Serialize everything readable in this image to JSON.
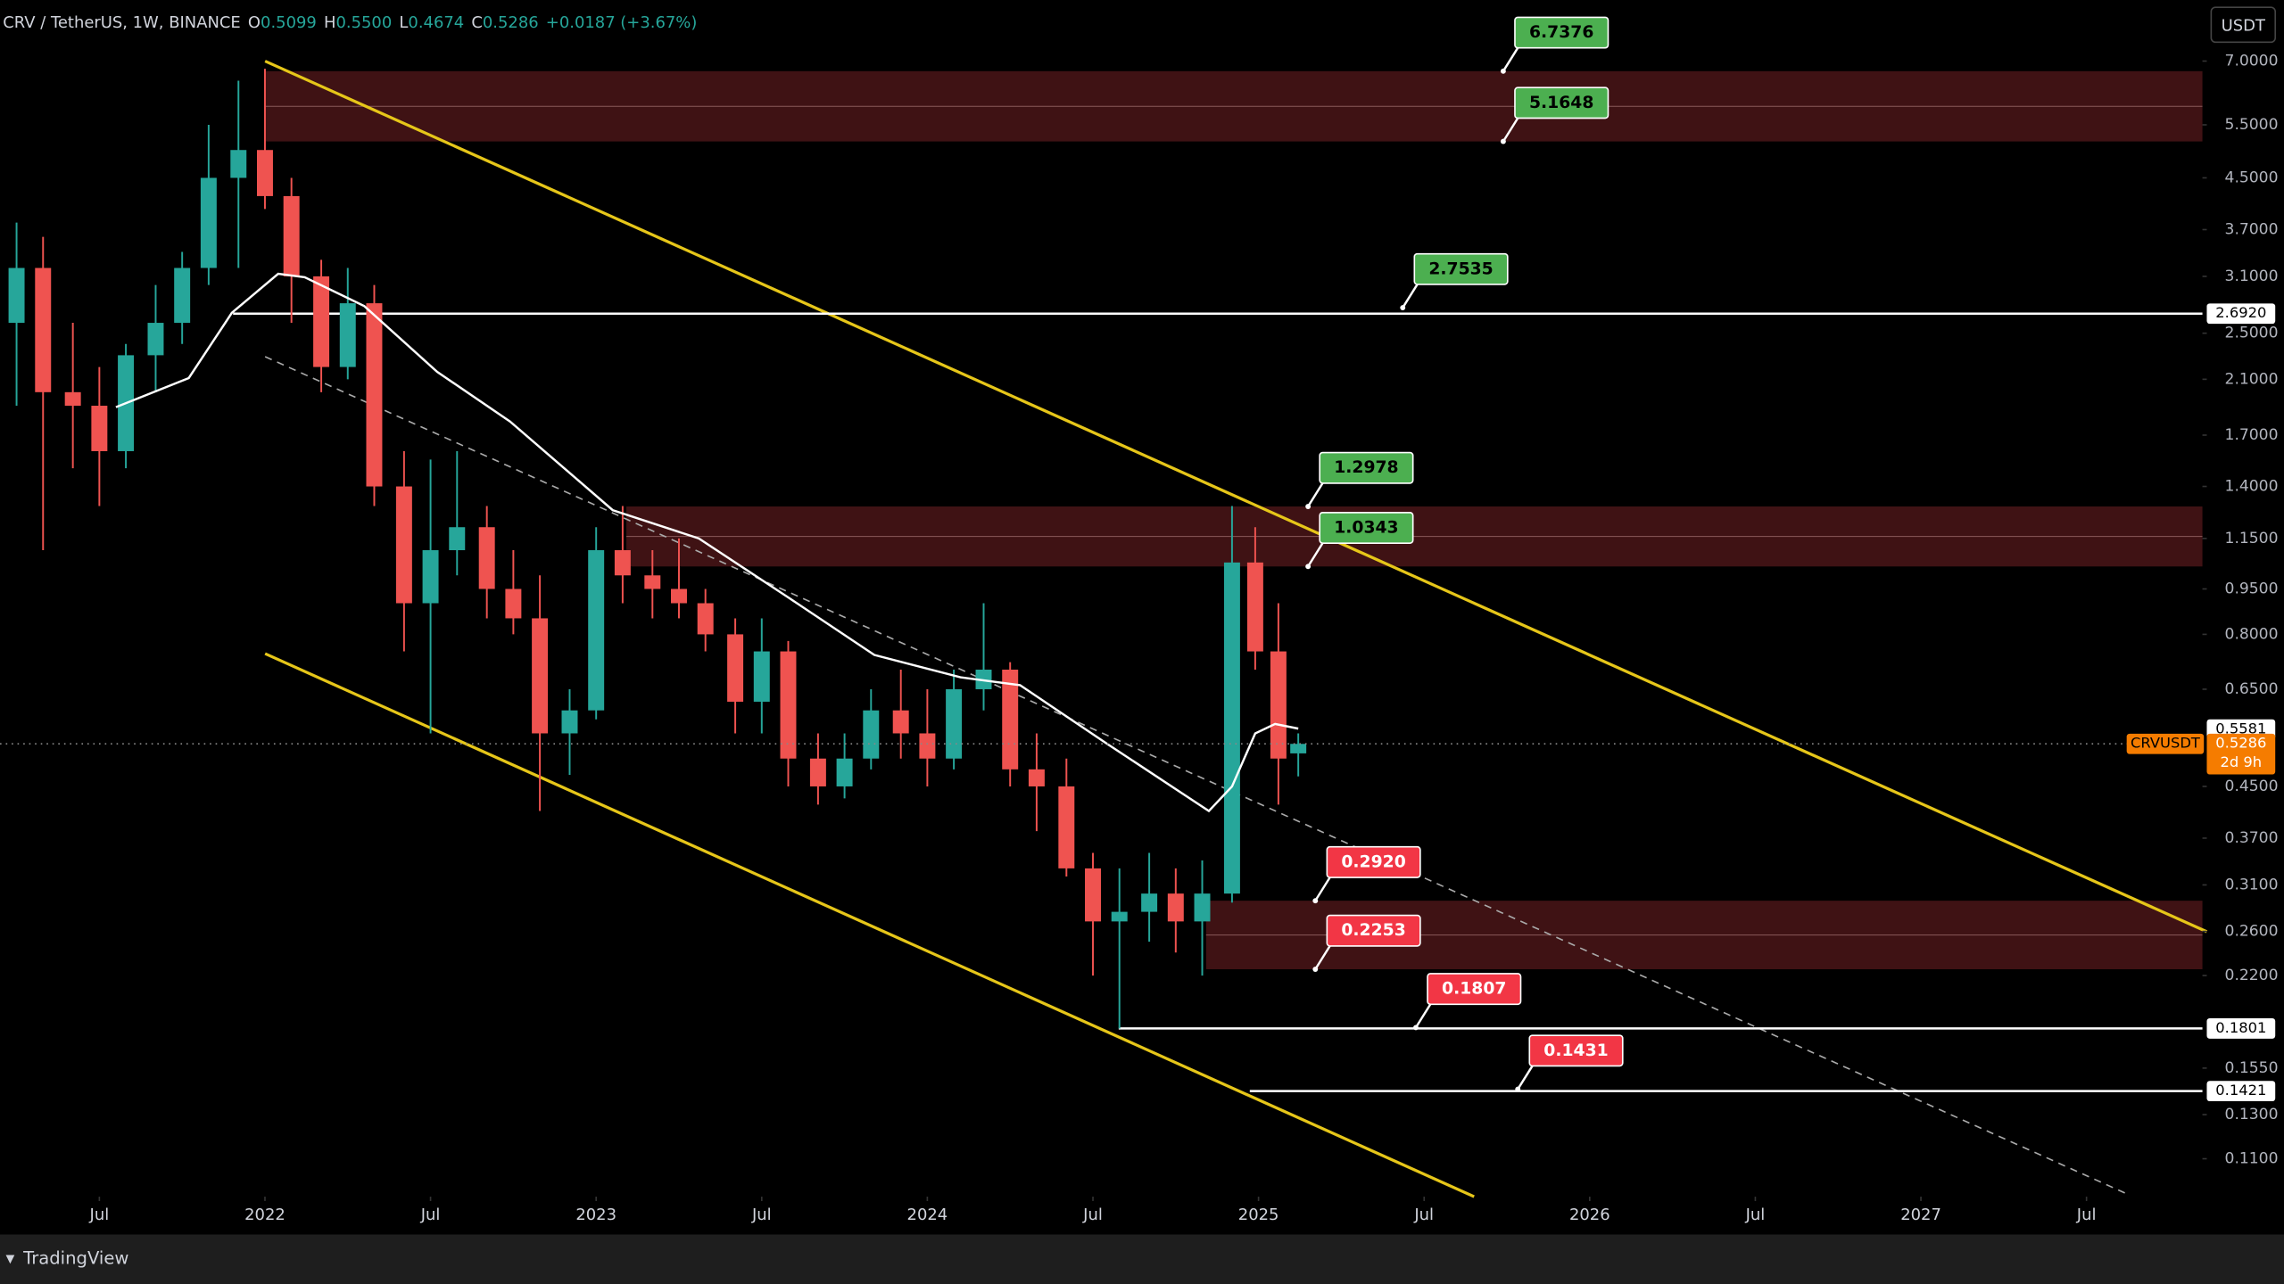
{
  "header": {
    "title": "CRV / TetherUS, 1W, BINANCE",
    "o": {
      "letter": "O",
      "value": "0.5099"
    },
    "h": {
      "letter": "H",
      "value": "0.5500"
    },
    "l": {
      "letter": "L",
      "value": "0.4674"
    },
    "c": {
      "letter": "C",
      "value": "0.5286"
    },
    "change": "+0.0187 (+3.67%)",
    "currency": "USDT"
  },
  "footer": {
    "brand": "TradingView"
  },
  "chart_data": {
    "type": "candlestick",
    "y_scale": "log",
    "grid": false,
    "up_color": "#26a69a",
    "down_color": "#ef5350",
    "xlim": [
      2021.2,
      2027.85
    ],
    "ylim": [
      0.0953,
      8.82
    ],
    "xticks": [
      {
        "value": 2021.5,
        "label": "Jul"
      },
      {
        "value": 2022,
        "label": "2022"
      },
      {
        "value": 2022.5,
        "label": "Jul"
      },
      {
        "value": 2023,
        "label": "2023"
      },
      {
        "value": 2023.5,
        "label": "Jul"
      },
      {
        "value": 2024,
        "label": "2024"
      },
      {
        "value": 2024.5,
        "label": "Jul"
      },
      {
        "value": 2025,
        "label": "2025"
      },
      {
        "value": 2025.5,
        "label": "Jul"
      },
      {
        "value": 2026,
        "label": "2026"
      },
      {
        "value": 2026.5,
        "label": "Jul"
      },
      {
        "value": 2027,
        "label": "2027"
      },
      {
        "value": 2027.5,
        "label": "Jul"
      }
    ],
    "yticks": [
      {
        "value": 7,
        "label": "7.0000"
      },
      {
        "value": 5.5,
        "label": "5.5000"
      },
      {
        "value": 4.5,
        "label": "4.5000"
      },
      {
        "value": 3.7,
        "label": "3.7000"
      },
      {
        "value": 3.1,
        "label": "3.1000"
      },
      {
        "value": 2.5,
        "label": "2.5000"
      },
      {
        "value": 2.1,
        "label": "2.1000"
      },
      {
        "value": 1.7,
        "label": "1.7000"
      },
      {
        "value": 1.4,
        "label": "1.4000"
      },
      {
        "value": 1.15,
        "label": "1.1500"
      },
      {
        "value": 0.95,
        "label": "0.9500"
      },
      {
        "value": 0.8,
        "label": "0.8000"
      },
      {
        "value": 0.65,
        "label": "0.6500"
      },
      {
        "value": 0.45,
        "label": "0.4500"
      },
      {
        "value": 0.37,
        "label": "0.3700"
      },
      {
        "value": 0.31,
        "label": "0.3100"
      },
      {
        "value": 0.26,
        "label": "0.2600"
      },
      {
        "value": 0.22,
        "label": "0.2200"
      },
      {
        "value": 0.155,
        "label": "0.1550"
      },
      {
        "value": 0.13,
        "label": "0.1300"
      },
      {
        "value": 0.11,
        "label": "0.1100"
      }
    ],
    "x": [
      2021.25,
      2021.33,
      2021.42,
      2021.5,
      2021.58,
      2021.67,
      2021.75,
      2021.83,
      2021.92,
      2022.0,
      2022.08,
      2022.17,
      2022.25,
      2022.33,
      2022.42,
      2022.5,
      2022.58,
      2022.67,
      2022.75,
      2022.83,
      2022.92,
      2023.0,
      2023.08,
      2023.17,
      2023.25,
      2023.33,
      2023.42,
      2023.5,
      2023.58,
      2023.67,
      2023.75,
      2023.83,
      2023.92,
      2024.0,
      2024.08,
      2024.17,
      2024.25,
      2024.33,
      2024.42,
      2024.5,
      2024.58,
      2024.67,
      2024.75,
      2024.83,
      2024.92,
      2024.99,
      2025.06,
      2025.12
    ],
    "open": [
      2.6,
      3.2,
      2.0,
      1.9,
      1.6,
      2.3,
      2.6,
      3.2,
      4.5,
      5.0,
      4.2,
      3.1,
      2.2,
      2.8,
      1.4,
      0.9,
      1.1,
      1.2,
      0.95,
      0.85,
      0.55,
      0.6,
      1.1,
      1.0,
      0.95,
      0.9,
      0.8,
      0.62,
      0.75,
      0.5,
      0.45,
      0.5,
      0.6,
      0.55,
      0.5,
      0.65,
      0.7,
      0.48,
      0.45,
      0.33,
      0.27,
      0.28,
      0.3,
      0.27,
      0.3,
      1.05,
      0.75,
      0.5099
    ],
    "high": [
      3.8,
      3.6,
      2.6,
      2.2,
      2.4,
      3.0,
      3.4,
      5.5,
      6.5,
      6.8,
      4.5,
      3.3,
      3.2,
      3.0,
      1.6,
      1.55,
      1.6,
      1.3,
      1.1,
      1.0,
      0.65,
      1.2,
      1.3,
      1.1,
      1.15,
      0.95,
      0.85,
      0.85,
      0.78,
      0.55,
      0.55,
      0.65,
      0.7,
      0.65,
      0.7,
      0.9,
      0.72,
      0.55,
      0.5,
      0.35,
      0.33,
      0.35,
      0.33,
      0.34,
      1.3,
      1.2,
      0.9,
      0.55
    ],
    "low": [
      1.9,
      1.1,
      1.5,
      1.3,
      1.5,
      2.0,
      2.4,
      3.0,
      3.2,
      4.0,
      2.6,
      2.0,
      2.1,
      1.3,
      0.75,
      0.55,
      1.0,
      0.85,
      0.8,
      0.41,
      0.47,
      0.58,
      0.9,
      0.85,
      0.85,
      0.75,
      0.55,
      0.55,
      0.45,
      0.42,
      0.43,
      0.48,
      0.5,
      0.45,
      0.48,
      0.6,
      0.45,
      0.38,
      0.32,
      0.22,
      0.18,
      0.25,
      0.24,
      0.22,
      0.29,
      0.7,
      0.42,
      0.4674
    ],
    "close": [
      3.2,
      2.0,
      1.9,
      1.6,
      2.3,
      2.6,
      3.2,
      4.5,
      5.0,
      4.2,
      3.1,
      2.2,
      2.8,
      1.4,
      0.9,
      1.1,
      1.2,
      0.95,
      0.85,
      0.55,
      0.6,
      1.1,
      1.0,
      0.95,
      0.9,
      0.8,
      0.62,
      0.75,
      0.5,
      0.45,
      0.5,
      0.6,
      0.55,
      0.5,
      0.65,
      0.7,
      0.48,
      0.45,
      0.33,
      0.27,
      0.28,
      0.3,
      0.27,
      0.3,
      1.05,
      0.75,
      0.5,
      0.5286
    ],
    "ma": {
      "color": "#ffffff",
      "x": [
        2021.55,
        2021.77,
        2021.9,
        2022.04,
        2022.12,
        2022.3,
        2022.52,
        2022.74,
        2023.05,
        2023.31,
        2023.58,
        2023.84,
        2024.1,
        2024.28,
        2024.54,
        2024.85,
        2024.92,
        2024.99,
        2025.05,
        2025.12
      ],
      "values": [
        1.89,
        2.11,
        2.7,
        3.13,
        3.09,
        2.77,
        2.16,
        1.79,
        1.28,
        1.15,
        0.92,
        0.74,
        0.68,
        0.66,
        0.53,
        0.41,
        0.45,
        0.55,
        0.57,
        0.56
      ],
      "last": 0.5581
    },
    "current": {
      "symbol": "CRVUSDT",
      "value": 0.5286,
      "countdown": "2d 9h",
      "color": "#f57c00"
    },
    "hlines": [
      {
        "value": 2.692,
        "label": "2.6920"
      },
      0.1801,
      0.1421
    ],
    "zone_color": "#4a1518",
    "callouts": [
      {
        "value": 6.7376,
        "color": "#4caf50",
        "text_color": "#000000"
      },
      {
        "value": 5.1648,
        "color": "#4caf50",
        "text_color": "#000000"
      },
      {
        "value": 2.7535,
        "color": "#4caf50",
        "text_color": "#000000"
      },
      {
        "value": 1.2978,
        "color": "#4caf50",
        "text_color": "#000000"
      },
      {
        "value": 1.0343,
        "color": "#4caf50",
        "text_color": "#000000"
      },
      {
        "value": {
          "value": 0.292,
          "label": "0.2920"
        },
        "color": "#f23645",
        "text_color": "#ffffff"
      },
      {
        "value": 0.2253,
        "color": "#f23645",
        "text_color": "#ffffff"
      },
      {
        "value": 0.1807,
        "color": "#f23645",
        "text_color": "#ffffff"
      },
      {
        "value": 0.1431,
        "color": "#f23645",
        "text_color": "#ffffff"
      }
    ]
  }
}
